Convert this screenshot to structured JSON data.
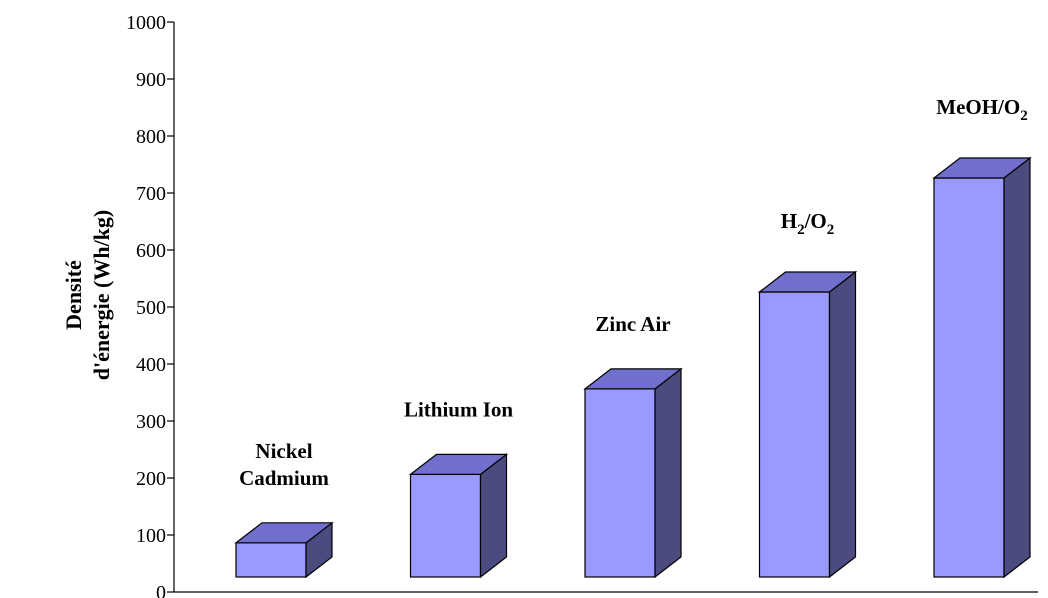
{
  "chart_data": {
    "type": "bar",
    "style": "3d",
    "categories": [
      {
        "lines": [
          "Nickel",
          "Cadmium"
        ]
      },
      {
        "lines": [
          "Lithium Ion"
        ]
      },
      {
        "lines": [
          "Zinc Air"
        ]
      },
      {
        "parts": [
          [
            "H",
            false
          ],
          [
            "2",
            true
          ],
          [
            "/O",
            false
          ],
          [
            "2",
            true
          ]
        ]
      },
      {
        "parts": [
          [
            "MeOH/O",
            false
          ],
          [
            "2",
            true
          ]
        ]
      }
    ],
    "values": [
      60,
      180,
      330,
      500,
      700
    ],
    "ylabel_lines": [
      "Densité",
      "d'énergie (Wh/kg)"
    ],
    "xlabel": "",
    "ylim": [
      0,
      1000
    ],
    "yticks": [
      0,
      100,
      200,
      300,
      400,
      500,
      600,
      700,
      800,
      900,
      1000
    ],
    "grid": false,
    "legend": "none",
    "colors": {
      "front": "#9999ff",
      "top": "#7070cc",
      "side": "#4b4b7f",
      "outline": "#000000"
    }
  }
}
